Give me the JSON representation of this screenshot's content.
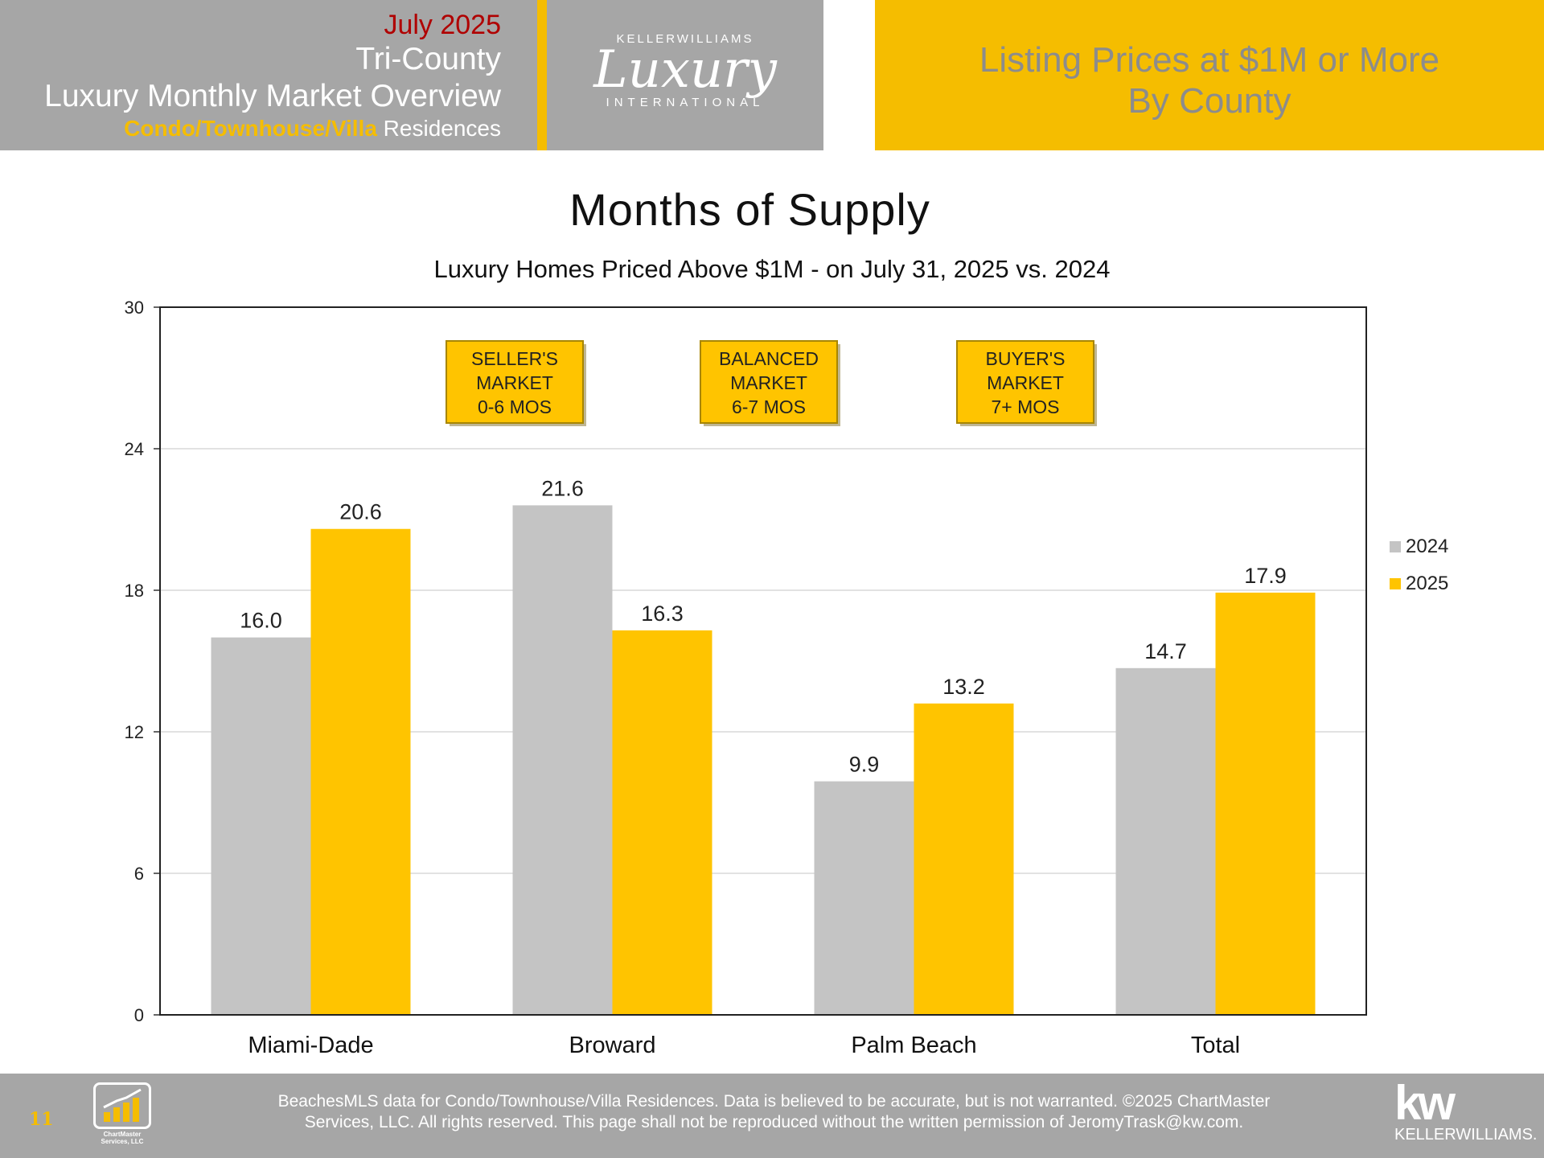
{
  "header": {
    "month": "July 2025",
    "region": "Tri-County",
    "overview": "Luxury Monthly Market Overview",
    "type_accent": "Condo/Townhouse/Villa",
    "type_rest": " Residences",
    "logo_top": "KELLERWILLIAMS",
    "logo_script": "Luxury",
    "logo_bottom": "INTERNATIONAL",
    "right_line1": "Listing Prices at $1M or More",
    "right_line2": "By County"
  },
  "chart_data": {
    "type": "bar",
    "title": "Months of Supply",
    "subtitle": "Luxury Homes Priced Above $1M - on July 31,  2025 vs. 2024",
    "categories": [
      "Miami-Dade",
      "Broward",
      "Palm Beach",
      "Total"
    ],
    "series": [
      {
        "name": "2024",
        "values": [
          16.0,
          21.6,
          9.9,
          14.7
        ],
        "labels": [
          "16.0",
          "21.6",
          "9.9",
          "14.7"
        ],
        "color": "#c4c4c4"
      },
      {
        "name": "2025",
        "values": [
          20.6,
          16.3,
          13.2,
          17.9
        ],
        "labels": [
          "20.6",
          "16.3",
          "13.2",
          "17.9"
        ],
        "color": "#ffc400"
      }
    ],
    "ylim": [
      0,
      30
    ],
    "yticks": [
      0,
      6,
      12,
      18,
      24,
      30
    ],
    "grid": true,
    "legend": "right",
    "annotations": [
      {
        "lines": [
          "SELLER'S",
          "MARKET",
          "0-6 MOS"
        ]
      },
      {
        "lines": [
          "BALANCED",
          "MARKET",
          "6-7 MOS"
        ]
      },
      {
        "lines": [
          "BUYER'S",
          "MARKET",
          "7+ MOS"
        ]
      }
    ]
  },
  "footer": {
    "page_number": "11",
    "chartmaster_line1": "ChartMaster",
    "chartmaster_line2": "Services, LLC",
    "disclaimer_line1": "BeachesMLS data for Condo/Townhouse/Villa Residences.  Data is believed to be accurate, but is not warranted.   ©2025  ChartMaster",
    "disclaimer_line2": "Services, LLC.  All rights reserved. This page shall not be reproduced without the written permission of JeromyTrask@kw.com.",
    "kw_mark": "kw",
    "kw_word": "KELLERWILLIAMS."
  },
  "colors": {
    "gold": "#f5bd00",
    "bar_2025": "#ffc400",
    "bar_2024": "#c4c4c4",
    "header_gray": "#a6a6a6",
    "month_red": "#b00000"
  }
}
